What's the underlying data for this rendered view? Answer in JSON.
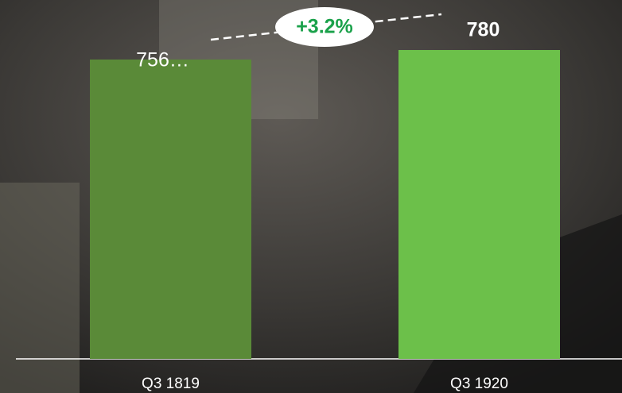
{
  "chart_data": {
    "type": "bar",
    "categories": [
      "Q3 1819",
      "Q3 1920"
    ],
    "values": [
      756,
      780
    ],
    "value_labels": [
      "756…",
      "780"
    ],
    "colors": [
      "#5a8a38",
      "#6cc04a"
    ],
    "annotation": "+3.2%"
  }
}
